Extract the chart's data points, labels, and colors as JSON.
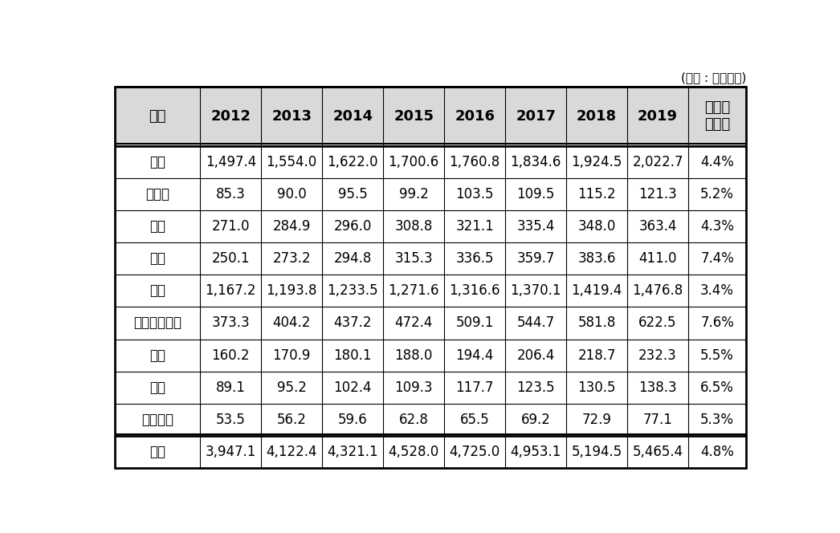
{
  "unit_text": "(단위 : 백만달러)",
  "columns": [
    "지역",
    "2012",
    "2013",
    "2014",
    "2015",
    "2016",
    "2017",
    "2018",
    "2019",
    "연평균\n성장률"
  ],
  "rows": [
    [
      "미국",
      "1,497.4",
      "1,554.0",
      "1,622.0",
      "1,700.6",
      "1,760.8",
      "1,834.6",
      "1,924.5",
      "2,022.7",
      "4.4%"
    ],
    [
      "캐나다",
      "85.3",
      "90.0",
      "95.5",
      "99.2",
      "103.5",
      "109.5",
      "115.2",
      "121.3",
      "5.2%"
    ],
    [
      "일본",
      "271.0",
      "284.9",
      "296.0",
      "308.8",
      "321.1",
      "335.4",
      "348.0",
      "363.4",
      "4.3%"
    ],
    [
      "중국",
      "250.1",
      "273.2",
      "294.8",
      "315.3",
      "336.5",
      "359.7",
      "383.6",
      "411.0",
      "7.4%"
    ],
    [
      "유럽",
      "1,167.2",
      "1,193.8",
      "1,233.5",
      "1,271.6",
      "1,316.6",
      "1,370.1",
      "1,419.4",
      "1,476.8",
      "3.4%"
    ],
    [
      "아시아태평양",
      "373.3",
      "404.2",
      "437.2",
      "472.4",
      "509.1",
      "544.7",
      "581.8",
      "622.5",
      "7.6%"
    ],
    [
      "남미",
      "160.2",
      "170.9",
      "180.1",
      "188.0",
      "194.4",
      "206.4",
      "218.7",
      "232.3",
      "5.5%"
    ],
    [
      "중동",
      "89.1",
      "95.2",
      "102.4",
      "109.3",
      "117.7",
      "123.5",
      "130.5",
      "138.3",
      "6.5%"
    ],
    [
      "아프리카",
      "53.5",
      "56.2",
      "59.6",
      "62.8",
      "65.5",
      "69.2",
      "72.9",
      "77.1",
      "5.3%"
    ],
    [
      "전체",
      "3,947.1",
      "4,122.4",
      "4,321.1",
      "4,528.0",
      "4,725.0",
      "4,953.1",
      "5,194.5",
      "5,465.4",
      "4.8%"
    ]
  ],
  "header_bg": "#d9d9d9",
  "row_bg": "#ffffff",
  "text_color": "#000000",
  "border_color": "#000000",
  "header_font_size": 13,
  "data_font_size": 12,
  "unit_font_size": 11,
  "col_widths": [
    1.4,
    1.0,
    1.0,
    1.0,
    1.0,
    1.0,
    1.0,
    1.0,
    1.0,
    0.95
  ],
  "figsize": [
    10.46,
    6.64
  ]
}
